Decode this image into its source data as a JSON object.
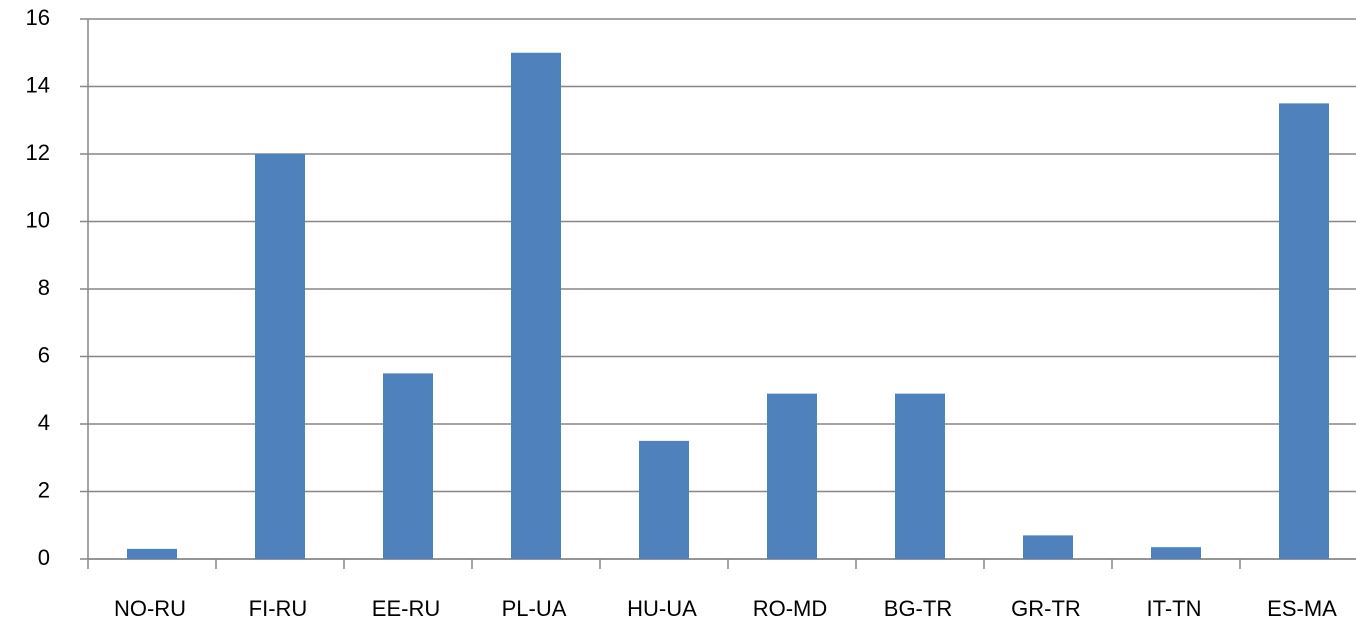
{
  "chart_data": {
    "type": "bar",
    "categories": [
      "NO-RU",
      "FI-RU",
      "EE-RU",
      "PL-UA",
      "HU-UA",
      "RO-MD",
      "BG-TR",
      "GR-TR",
      "IT-TN",
      "ES-MA"
    ],
    "values": [
      0.3,
      12,
      5.5,
      15,
      3.5,
      4.9,
      4.9,
      0.7,
      0.35,
      13.5
    ],
    "color": "#4f81bd",
    "ylim": [
      0,
      16
    ],
    "yticks": [
      0,
      2,
      4,
      6,
      8,
      10,
      12,
      14,
      16
    ],
    "grid": true
  }
}
